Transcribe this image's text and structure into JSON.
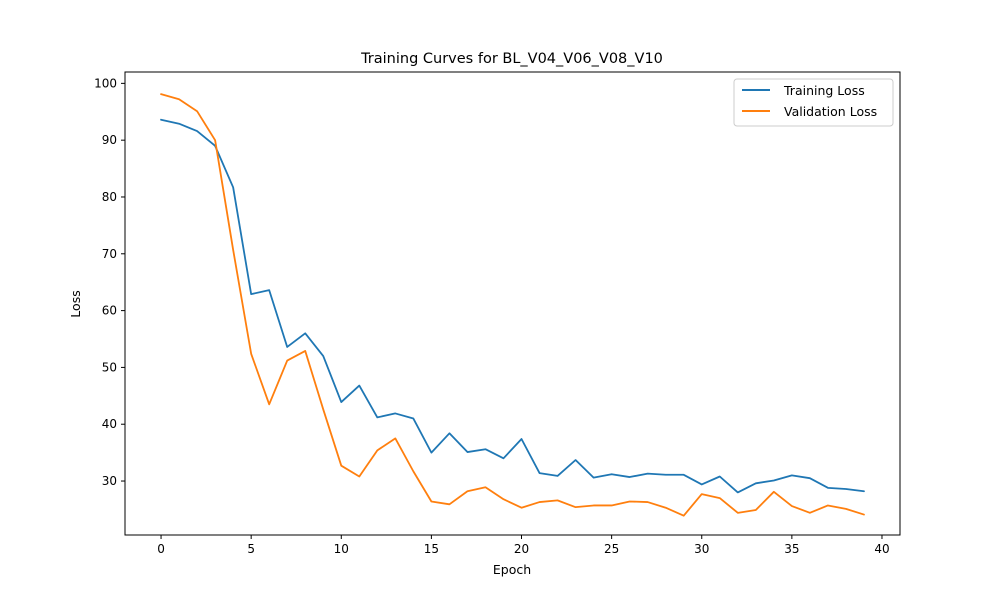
{
  "chart_data": {
    "type": "line",
    "title": "Training Curves for BL_V04_V06_V08_V10",
    "xlabel": "Epoch",
    "ylabel": "Loss",
    "xlim": [
      -2,
      41
    ],
    "ylim": [
      20.5,
      102
    ],
    "x_ticks": [
      0,
      5,
      10,
      15,
      20,
      25,
      30,
      35,
      40
    ],
    "y_ticks": [
      30,
      40,
      50,
      60,
      70,
      80,
      90,
      100
    ],
    "grid": false,
    "legend_position": "top-right",
    "x": [
      0,
      1,
      2,
      3,
      4,
      5,
      6,
      7,
      8,
      9,
      10,
      11,
      12,
      13,
      14,
      15,
      16,
      17,
      18,
      19,
      20,
      21,
      22,
      23,
      24,
      25,
      26,
      27,
      28,
      29,
      30,
      31,
      32,
      33,
      34,
      35,
      36,
      37,
      38,
      39
    ],
    "series": [
      {
        "name": "Training Loss",
        "color": "#1f77b4",
        "values": [
          93.6,
          92.9,
          91.6,
          89.0,
          81.7,
          62.9,
          63.6,
          53.6,
          56.0,
          52.0,
          43.9,
          46.8,
          41.2,
          41.9,
          41.0,
          35.0,
          38.4,
          35.1,
          35.6,
          34.0,
          37.4,
          31.4,
          30.9,
          33.7,
          30.6,
          31.2,
          30.7,
          31.3,
          31.1,
          31.1,
          29.4,
          30.8,
          28.0,
          29.6,
          30.1,
          31.0,
          30.5,
          28.8,
          28.6,
          28.2
        ]
      },
      {
        "name": "Validation Loss",
        "color": "#ff7f0e",
        "values": [
          98.1,
          97.2,
          95.1,
          90.0,
          70.7,
          52.4,
          43.5,
          51.2,
          52.9,
          42.6,
          32.7,
          30.8,
          35.4,
          37.5,
          31.7,
          26.4,
          25.9,
          28.2,
          28.9,
          26.8,
          25.3,
          26.3,
          26.6,
          25.4,
          25.7,
          25.7,
          26.4,
          26.3,
          25.3,
          23.9,
          27.7,
          27.0,
          24.4,
          24.9,
          28.1,
          25.6,
          24.4,
          25.7,
          25.1,
          24.1
        ]
      }
    ]
  }
}
